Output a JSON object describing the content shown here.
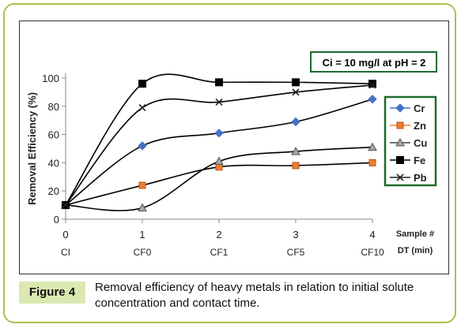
{
  "figure": {
    "label": "Figure 4",
    "caption": "Removal efficiency of heavy metals in relation to initial solute concentration and contact time."
  },
  "chart_data": {
    "type": "line",
    "ylabel": "Removal Efficiency (%)",
    "xlabel_lines": [
      "Sample #",
      "DT  (min)"
    ],
    "annotation": "Ci = 10 mg/l at pH = 2",
    "x": [
      0,
      1,
      2,
      3,
      4
    ],
    "x_tick_labels": [
      "0",
      "1",
      "2",
      "3",
      "4"
    ],
    "x_category_labels": [
      "CI",
      "CF0",
      "CF1",
      "CF5",
      "CF10"
    ],
    "xlim": [
      0,
      4
    ],
    "ylim": [
      0,
      100
    ],
    "y_ticks": [
      "0",
      "20",
      "40",
      "60",
      "80",
      "100"
    ],
    "grid": false,
    "legend_position": "right",
    "series": [
      {
        "name": "Cr",
        "color": "#4472c4",
        "marker": "diamond",
        "values": [
          10,
          52,
          61,
          69,
          85
        ]
      },
      {
        "name": "Zn",
        "color": "#ed7d31",
        "marker": "square",
        "values": [
          10,
          24,
          37,
          38,
          40
        ]
      },
      {
        "name": "Cu",
        "color": "#a5a5a5",
        "marker": "triangle",
        "values": [
          10,
          8,
          41,
          48,
          51
        ]
      },
      {
        "name": "Fe",
        "color": "#000000",
        "marker": "square-filled",
        "values": [
          10,
          96,
          97,
          97,
          96
        ]
      },
      {
        "name": "Pb",
        "color": "#222222",
        "marker": "x",
        "values": [
          10,
          79,
          83,
          90,
          95
        ]
      }
    ]
  }
}
